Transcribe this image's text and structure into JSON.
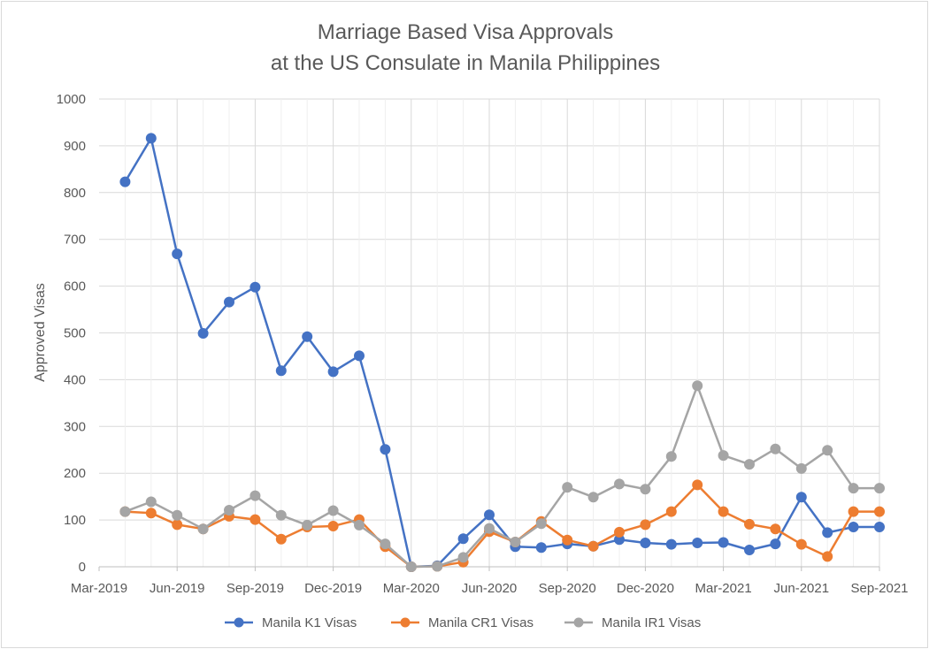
{
  "chart_data": {
    "type": "line",
    "title": [
      "Marriage Based Visa Approvals",
      "at the US Consulate in Manila Philippines"
    ],
    "xlabel": "",
    "ylabel": "Approved Visas",
    "ylim": [
      0,
      1000
    ],
    "yticks": [
      0,
      100,
      200,
      300,
      400,
      500,
      600,
      700,
      800,
      900,
      1000
    ],
    "xlim": [
      "2019-03",
      "2021-09"
    ],
    "xticks": [
      "Mar-2019",
      "Jun-2019",
      "Sep-2019",
      "Dec-2019",
      "Mar-2020",
      "Jun-2020",
      "Sep-2020",
      "Dec-2020",
      "Mar-2021",
      "Jun-2021",
      "Sep-2021"
    ],
    "grid": true,
    "legend_position": "bottom",
    "x": [
      "2019-04",
      "2019-05",
      "2019-06",
      "2019-07",
      "2019-08",
      "2019-09",
      "2019-10",
      "2019-11",
      "2019-12",
      "2020-01",
      "2020-02",
      "2020-03",
      "2020-04",
      "2020-05",
      "2020-06",
      "2020-07",
      "2020-08",
      "2020-09",
      "2020-10",
      "2020-11",
      "2020-12",
      "2021-01",
      "2021-02",
      "2021-03",
      "2021-04",
      "2021-05",
      "2021-06",
      "2021-07",
      "2021-08",
      "2021-09"
    ],
    "series": [
      {
        "name": "Manila K1 Visas",
        "color": "#4472c4",
        "values": [
          823,
          916,
          669,
          499,
          566,
          598,
          419,
          492,
          417,
          451,
          251,
          0,
          2,
          60,
          111,
          43,
          41,
          49,
          44,
          58,
          51,
          48,
          51,
          52,
          36,
          49,
          149,
          73,
          85,
          85
        ]
      },
      {
        "name": "Manila CR1 Visas",
        "color": "#ed7d31",
        "values": [
          118,
          115,
          90,
          81,
          108,
          101,
          59,
          85,
          87,
          101,
          43,
          0,
          1,
          10,
          75,
          53,
          97,
          57,
          44,
          74,
          90,
          118,
          175,
          118,
          91,
          81,
          48,
          22,
          118,
          118
        ]
      },
      {
        "name": "Manila IR1 Visas",
        "color": "#a5a5a5",
        "values": [
          118,
          139,
          110,
          81,
          121,
          152,
          110,
          89,
          120,
          89,
          49,
          0,
          1,
          20,
          82,
          53,
          92,
          170,
          149,
          177,
          166,
          236,
          387,
          238,
          219,
          252,
          210,
          249,
          168,
          168
        ]
      }
    ]
  }
}
